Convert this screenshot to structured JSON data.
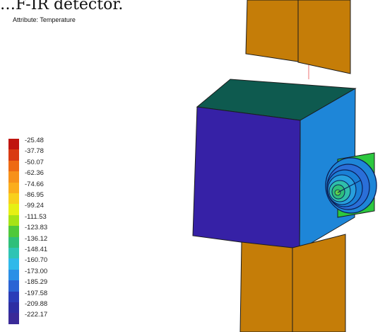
{
  "caption": "…F-IR detector.",
  "attribute_label": "Attribute: Temperature",
  "legend": {
    "values": [
      "-25.48",
      "-37.78",
      "-50.07",
      "-62.36",
      "-74.66",
      "-86.95",
      "-99.24",
      "-111.53",
      "-123.83",
      "-136.12",
      "-148.41",
      "-160.70",
      "-173.00",
      "-185.29",
      "-197.58",
      "-209.88",
      "-222.17"
    ],
    "colors": [
      "#c0150f",
      "#d93a12",
      "#ee6a13",
      "#f7911a",
      "#fbad1c",
      "#f8d01c",
      "#e6f014",
      "#a6e316",
      "#4fc93a",
      "#2fbf7a",
      "#2fc4b4",
      "#2fb9ea",
      "#2a8fe6",
      "#2a63d4",
      "#2a3cb8",
      "#2d2ea3",
      "#3a2a98"
    ]
  },
  "colors": {
    "solar_panel": "#c57d08",
    "body_front": "#3621a6",
    "body_side": "#1e86d8",
    "body_top": "#0e5a4f",
    "antenna_plate": "#2cc83f",
    "boom": "#f08a8a",
    "edge": "#1c1c1c"
  }
}
